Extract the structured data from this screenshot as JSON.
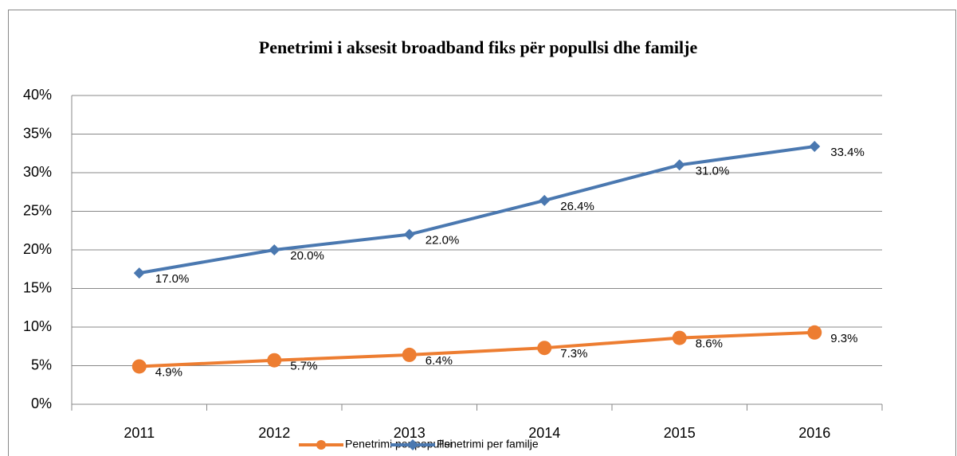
{
  "chart_data": {
    "type": "line",
    "title": "Penetrimi i aksesit broadband fiks për popullsi dhe familje",
    "categories": [
      "2011",
      "2012",
      "2013",
      "2014",
      "2015",
      "2016"
    ],
    "series": [
      {
        "name": "Penetrimi per popullsi",
        "color": "#ed7d31",
        "marker": "circle",
        "values": [
          4.9,
          5.7,
          6.4,
          7.3,
          8.6,
          9.3
        ],
        "value_labels": [
          "4.9%",
          "5.7%",
          "6.4%",
          "7.3%",
          "8.6%",
          "9.3%"
        ]
      },
      {
        "name": "Penetrimi per familje",
        "color": "#4a78b0",
        "marker": "diamond",
        "values": [
          17.0,
          20.0,
          22.0,
          26.4,
          31.0,
          33.4
        ],
        "value_labels": [
          "17.0%",
          "20.0%",
          "22.0%",
          "26.4%",
          "31.0%",
          "33.4%"
        ]
      }
    ],
    "ylim": [
      0,
      40
    ],
    "yticks": [
      {
        "value": 0,
        "label": "0%"
      },
      {
        "value": 5,
        "label": "5%"
      },
      {
        "value": 10,
        "label": "10%"
      },
      {
        "value": 15,
        "label": "15%"
      },
      {
        "value": 20,
        "label": "20%"
      },
      {
        "value": 25,
        "label": "25%"
      },
      {
        "value": 30,
        "label": "30%"
      },
      {
        "value": 35,
        "label": "35%"
      },
      {
        "value": 40,
        "label": "40%"
      }
    ],
    "grid": true,
    "legend": "bottom"
  }
}
